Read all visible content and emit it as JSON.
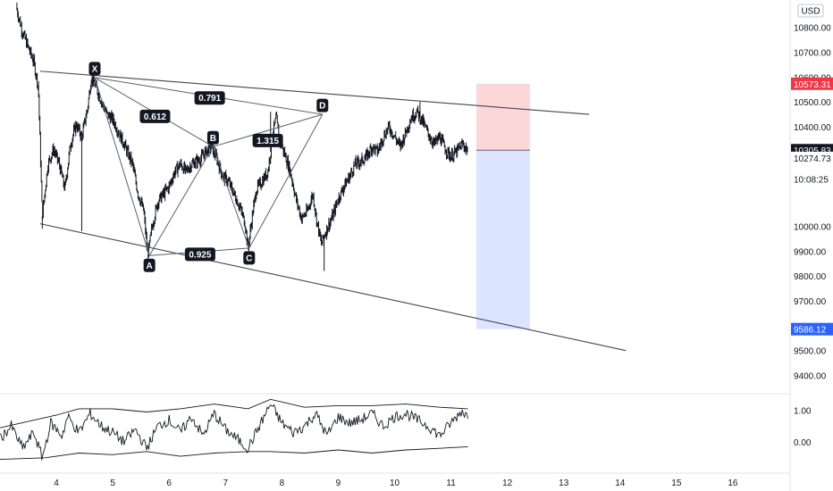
{
  "chart_data": {
    "type": "candlestick",
    "currency": "USD",
    "price_axis": {
      "ylim": [
        9330,
        10910
      ],
      "ticks": [
        {
          "v": 10800,
          "label": "10800.00"
        },
        {
          "v": 10700,
          "label": "10700.00"
        },
        {
          "v": 10600,
          "label": "10600.00"
        },
        {
          "v": 10500,
          "label": "10500.00"
        },
        {
          "v": 10400,
          "label": "10400.00"
        },
        {
          "v": 10000,
          "label": "10000.00"
        },
        {
          "v": 9900,
          "label": "9900.00"
        },
        {
          "v": 9800,
          "label": "9800.00"
        },
        {
          "v": 9700,
          "label": "9700.00"
        },
        {
          "v": 9500,
          "label": "9500.00"
        },
        {
          "v": 9400,
          "label": "9400.00"
        }
      ],
      "tags": [
        {
          "name": "stop-level-tag",
          "v": 10573.31,
          "label": "10573.31",
          "bg": "#f23645",
          "fg": "#ffffff"
        },
        {
          "name": "last-price-tag",
          "v": 10305.83,
          "label": "10305.83",
          "bg": "#131722",
          "fg": "#ffffff"
        },
        {
          "name": "prev-close-label",
          "v": 10274.73,
          "label": "10274.73",
          "bg": "#ffffff",
          "fg": "#131722"
        },
        {
          "name": "countdown-label",
          "v": 10190,
          "label": "10:08:25",
          "bg": "#ffffff",
          "fg": "#131722"
        },
        {
          "name": "target-level-tag",
          "v": 9586.12,
          "label": "9586.12",
          "bg": "#2962ff",
          "fg": "#ffffff"
        }
      ]
    },
    "time_axis": {
      "xlim": [
        3.0,
        17.0
      ],
      "ticks": [
        4,
        5,
        6,
        7,
        8,
        9,
        10,
        11,
        12,
        13,
        14,
        15,
        16
      ],
      "labels": [
        "4",
        "5",
        "6",
        "7",
        "8",
        "9",
        "10",
        "11",
        "12",
        "13",
        "14",
        "15",
        "16"
      ]
    },
    "price_path": [
      [
        3.3,
        10870
      ],
      [
        3.4,
        10780
      ],
      [
        3.5,
        10720
      ],
      [
        3.6,
        10660
      ],
      [
        3.68,
        10560
      ],
      [
        3.75,
        10040
      ],
      [
        3.85,
        10250
      ],
      [
        3.95,
        10310
      ],
      [
        4.05,
        10250
      ],
      [
        4.15,
        10150
      ],
      [
        4.25,
        10330
      ],
      [
        4.35,
        10410
      ],
      [
        4.45,
        10360
      ],
      [
        4.55,
        10470
      ],
      [
        4.62,
        10600
      ],
      [
        4.7,
        10560
      ],
      [
        4.8,
        10500
      ],
      [
        4.9,
        10450
      ],
      [
        5.0,
        10430
      ],
      [
        5.1,
        10380
      ],
      [
        5.2,
        10330
      ],
      [
        5.35,
        10250
      ],
      [
        5.45,
        10130
      ],
      [
        5.55,
        10060
      ],
      [
        5.62,
        9880
      ],
      [
        5.7,
        10000
      ],
      [
        5.8,
        10100
      ],
      [
        5.9,
        10130
      ],
      [
        6.0,
        10160
      ],
      [
        6.1,
        10220
      ],
      [
        6.2,
        10250
      ],
      [
        6.3,
        10220
      ],
      [
        6.4,
        10250
      ],
      [
        6.55,
        10270
      ],
      [
        6.65,
        10300
      ],
      [
        6.75,
        10320
      ],
      [
        6.85,
        10270
      ],
      [
        6.95,
        10200
      ],
      [
        7.05,
        10180
      ],
      [
        7.15,
        10130
      ],
      [
        7.25,
        10080
      ],
      [
        7.35,
        10010
      ],
      [
        7.4,
        9910
      ],
      [
        7.48,
        10050
      ],
      [
        7.55,
        10150
      ],
      [
        7.65,
        10180
      ],
      [
        7.75,
        10220
      ],
      [
        7.85,
        10380
      ],
      [
        7.9,
        10440
      ],
      [
        7.95,
        10350
      ],
      [
        8.05,
        10290
      ],
      [
        8.15,
        10220
      ],
      [
        8.25,
        10110
      ],
      [
        8.35,
        10030
      ],
      [
        8.45,
        10060
      ],
      [
        8.55,
        10130
      ],
      [
        8.62,
        10020
      ],
      [
        8.7,
        9930
      ],
      [
        8.78,
        9980
      ],
      [
        8.9,
        10040
      ],
      [
        9.0,
        10110
      ],
      [
        9.1,
        10160
      ],
      [
        9.2,
        10200
      ],
      [
        9.3,
        10250
      ],
      [
        9.4,
        10260
      ],
      [
        9.5,
        10280
      ],
      [
        9.6,
        10320
      ],
      [
        9.7,
        10300
      ],
      [
        9.8,
        10360
      ],
      [
        9.9,
        10400
      ],
      [
        10.0,
        10360
      ],
      [
        10.1,
        10320
      ],
      [
        10.2,
        10380
      ],
      [
        10.3,
        10440
      ],
      [
        10.4,
        10460
      ],
      [
        10.5,
        10420
      ],
      [
        10.6,
        10370
      ],
      [
        10.7,
        10330
      ],
      [
        10.8,
        10360
      ],
      [
        10.9,
        10310
      ],
      [
        11.0,
        10280
      ],
      [
        11.1,
        10300
      ],
      [
        11.2,
        10330
      ],
      [
        11.3,
        10306
      ]
    ],
    "wicks": [
      {
        "x": 3.75,
        "low": 9990
      },
      {
        "x": 4.45,
        "low": 9980
      },
      {
        "x": 8.75,
        "low": 9820
      },
      {
        "x": 10.45,
        "high": 10500
      },
      {
        "x": 3.3,
        "high": 10900
      },
      {
        "x": 7.8,
        "high": 10460
      }
    ],
    "channel": {
      "upper": [
        [
          3.0,
          10620
        ],
        [
          13.45,
          10450
        ]
      ],
      "lower": [
        [
          3.0,
          10010
        ],
        [
          14.1,
          9500
        ]
      ]
    },
    "harmonic_pattern": {
      "points": [
        {
          "label": "X",
          "x": 4.68,
          "v": 10598
        },
        {
          "label": "A",
          "x": 5.65,
          "v": 9882
        },
        {
          "label": "B",
          "x": 6.78,
          "v": 10320
        },
        {
          "label": "C",
          "x": 7.42,
          "v": 9912
        },
        {
          "label": "D",
          "x": 8.72,
          "v": 10450
        }
      ],
      "ratios": [
        {
          "label": "0.612",
          "from": "X",
          "to": "B",
          "x": 5.75,
          "v": 10442
        },
        {
          "label": "0.791",
          "from": "X",
          "to": "D",
          "x": 6.72,
          "v": 10516
        },
        {
          "label": "1.315",
          "from": "B",
          "to": "D",
          "x": 7.75,
          "v": 10345
        },
        {
          "label": "0.925",
          "from": "A",
          "to": "C",
          "x": 6.55,
          "v": 9887
        }
      ]
    },
    "position": {
      "x_start": 11.45,
      "x_end": 12.4,
      "entry": 10305.83,
      "stop": 10573.31,
      "target": 9586.12,
      "stop_color": "#f23645",
      "target_color": "#2962ff"
    },
    "oscillator": {
      "ticks": [
        {
          "v": 1.0,
          "label": "1.00"
        },
        {
          "v": 0.0,
          "label": "0.00"
        }
      ],
      "ylim": [
        -0.9,
        1.5
      ],
      "upper_band": [
        [
          3.0,
          0.45
        ],
        [
          4.0,
          0.85
        ],
        [
          4.4,
          1.05
        ],
        [
          5.0,
          1.05
        ],
        [
          5.6,
          0.95
        ],
        [
          6.2,
          1.05
        ],
        [
          6.8,
          1.2
        ],
        [
          7.4,
          1.05
        ],
        [
          7.8,
          1.35
        ],
        [
          8.4,
          1.1
        ],
        [
          9.0,
          1.15
        ],
        [
          9.6,
          1.15
        ],
        [
          10.2,
          1.2
        ],
        [
          10.8,
          1.1
        ],
        [
          11.3,
          1.05
        ]
      ],
      "lower_band": [
        [
          3.0,
          -0.55
        ],
        [
          3.8,
          -0.5
        ],
        [
          4.4,
          -0.35
        ],
        [
          5.0,
          -0.4
        ],
        [
          5.6,
          -0.3
        ],
        [
          6.2,
          -0.45
        ],
        [
          6.8,
          -0.35
        ],
        [
          7.4,
          -0.3
        ],
        [
          7.8,
          -0.3
        ],
        [
          8.4,
          -0.35
        ],
        [
          9.0,
          -0.25
        ],
        [
          9.6,
          -0.35
        ],
        [
          10.2,
          -0.25
        ],
        [
          10.8,
          -0.2
        ],
        [
          11.3,
          -0.15
        ]
      ],
      "line": [
        [
          3.0,
          0.1
        ],
        [
          3.2,
          0.5
        ],
        [
          3.4,
          -0.2
        ],
        [
          3.6,
          0.3
        ],
        [
          3.75,
          -0.5
        ],
        [
          3.9,
          0.6
        ],
        [
          4.1,
          0.2
        ],
        [
          4.2,
          0.8
        ],
        [
          4.4,
          0.3
        ],
        [
          4.6,
          0.9
        ],
        [
          4.8,
          0.5
        ],
        [
          5.0,
          0.3
        ],
        [
          5.2,
          0.0
        ],
        [
          5.4,
          0.4
        ],
        [
          5.6,
          -0.2
        ],
        [
          5.8,
          0.5
        ],
        [
          6.0,
          0.7
        ],
        [
          6.2,
          0.3
        ],
        [
          6.4,
          0.8
        ],
        [
          6.6,
          0.2
        ],
        [
          6.8,
          0.9
        ],
        [
          7.0,
          0.4
        ],
        [
          7.2,
          0.1
        ],
        [
          7.4,
          -0.2
        ],
        [
          7.6,
          0.5
        ],
        [
          7.8,
          1.2
        ],
        [
          8.0,
          0.6
        ],
        [
          8.2,
          0.3
        ],
        [
          8.4,
          0.5
        ],
        [
          8.6,
          0.9
        ],
        [
          8.8,
          0.2
        ],
        [
          9.0,
          0.8
        ],
        [
          9.2,
          0.6
        ],
        [
          9.4,
          0.7
        ],
        [
          9.6,
          0.9
        ],
        [
          9.8,
          0.5
        ],
        [
          10.0,
          0.8
        ],
        [
          10.2,
          0.9
        ],
        [
          10.4,
          0.7
        ],
        [
          10.6,
          0.5
        ],
        [
          10.8,
          0.2
        ],
        [
          11.0,
          0.6
        ],
        [
          11.2,
          1.0
        ],
        [
          11.3,
          0.8
        ]
      ]
    }
  }
}
